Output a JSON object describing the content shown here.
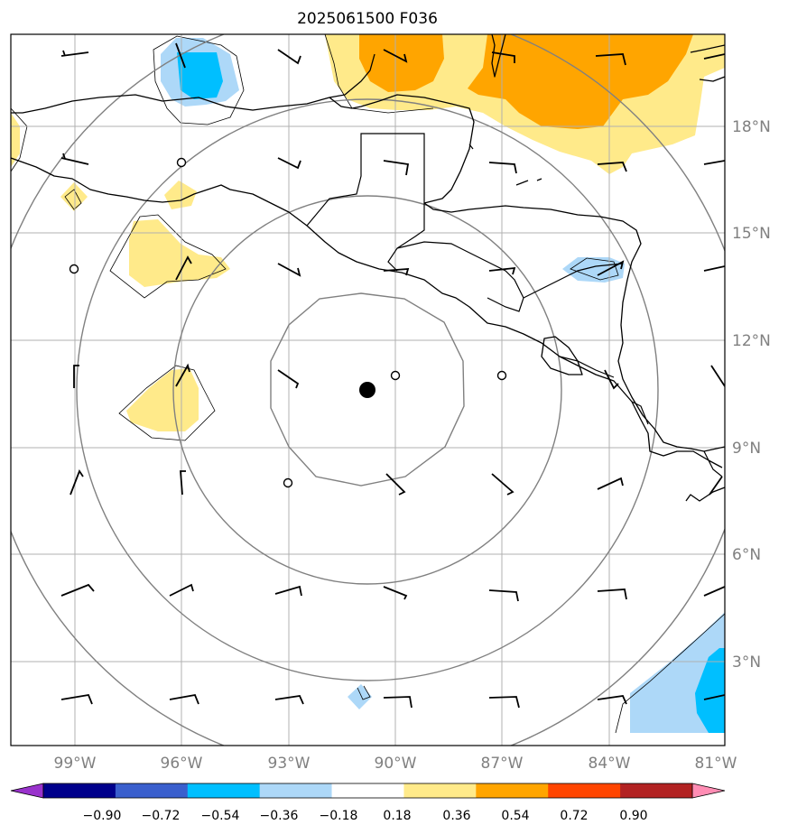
{
  "title": "2025061500 F036",
  "lat_labels": [
    "18°N",
    "15°N",
    "12°N",
    "9°N",
    "6°N",
    "3°N"
  ],
  "lon_labels": [
    "99°W",
    "96°W",
    "93°W",
    "90°W",
    "87°W",
    "84°W",
    "81°W"
  ],
  "colorbar": {
    "ticks": [
      "−0.90",
      "−0.72",
      "−0.54",
      "−0.36",
      "−0.18",
      "0.18",
      "0.36",
      "0.54",
      "0.72",
      "0.90"
    ],
    "colors": [
      "#9932cc",
      "#00008b",
      "#3a5fcd",
      "#00bfff",
      "#add8f8",
      "#ffffff",
      "#ffea8a",
      "#ffa500",
      "#ff4500",
      "#b22222",
      "#ff8db4"
    ]
  },
  "colors": {
    "light_yellow": "#ffea8a",
    "orange": "#ffa500",
    "light_blue": "#add8f8",
    "deep_sky_blue": "#00bfff",
    "grid": "#b0b0b0",
    "ring": "#808080",
    "label_grey": "#808080"
  },
  "storm_center": {
    "lat": 10.6,
    "lon": -90.8
  }
}
